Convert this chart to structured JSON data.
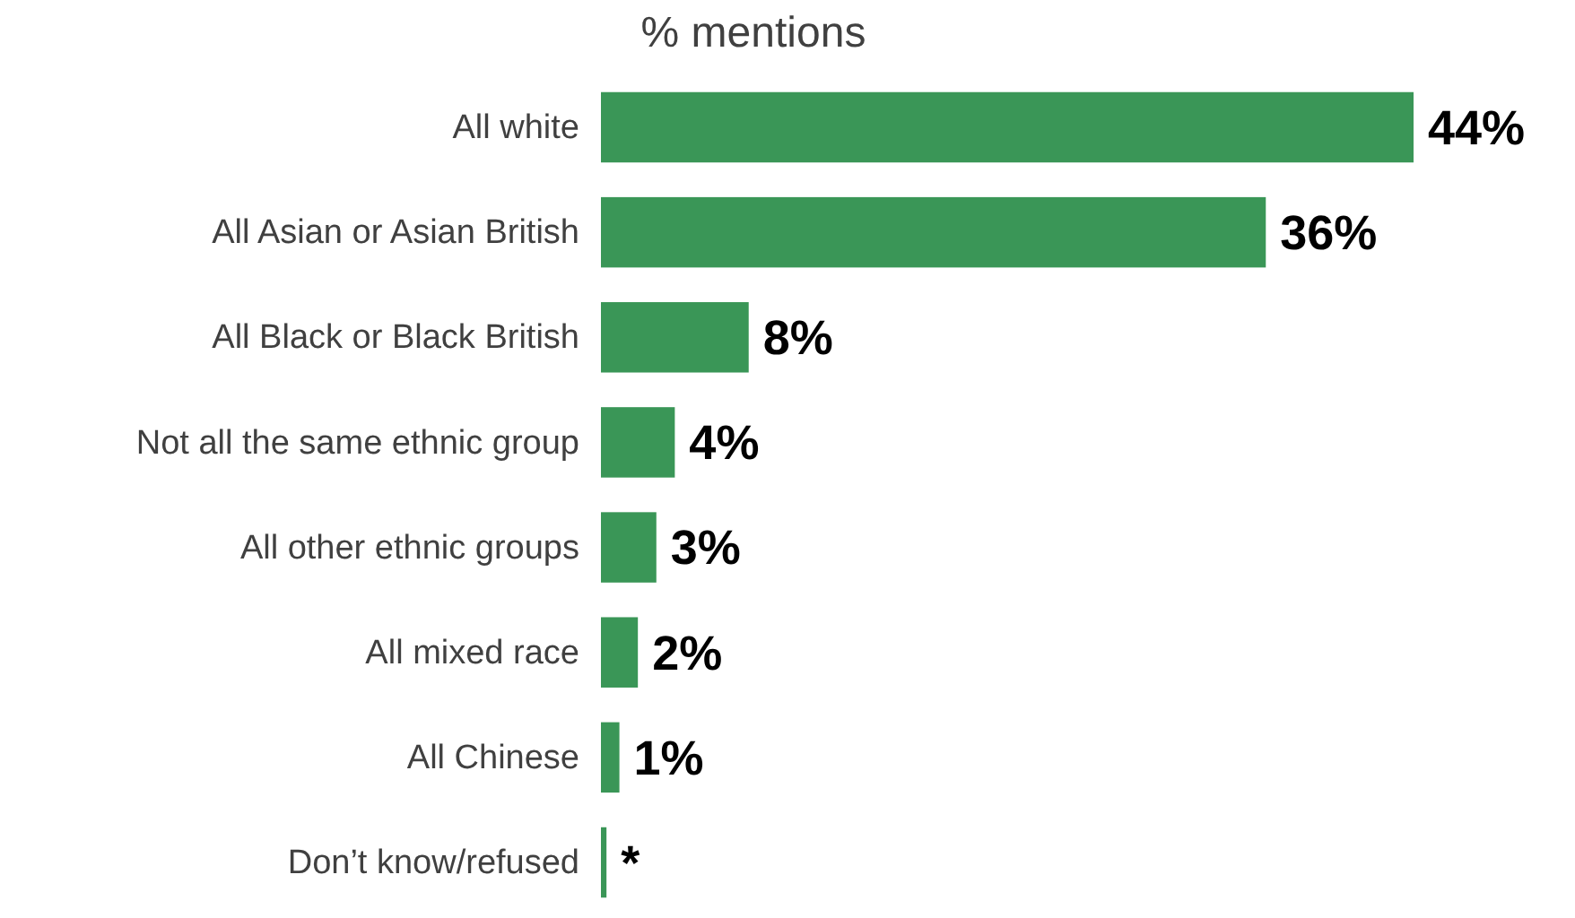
{
  "chart_data": {
    "type": "bar",
    "orientation": "horizontal",
    "title": "% mentions",
    "categories": [
      "All white",
      "All Asian or Asian British",
      "All Black or Black British",
      "Not all the same ethnic group",
      "All other ethnic groups",
      "All mixed race",
      "All Chinese",
      "Don’t know/refused"
    ],
    "values": [
      44,
      36,
      8,
      4,
      3,
      2,
      1,
      0.3
    ],
    "value_labels": [
      "44%",
      "36%",
      "8%",
      "4%",
      "3%",
      "2%",
      "1%",
      "*"
    ],
    "color": "#3a9657"
  }
}
